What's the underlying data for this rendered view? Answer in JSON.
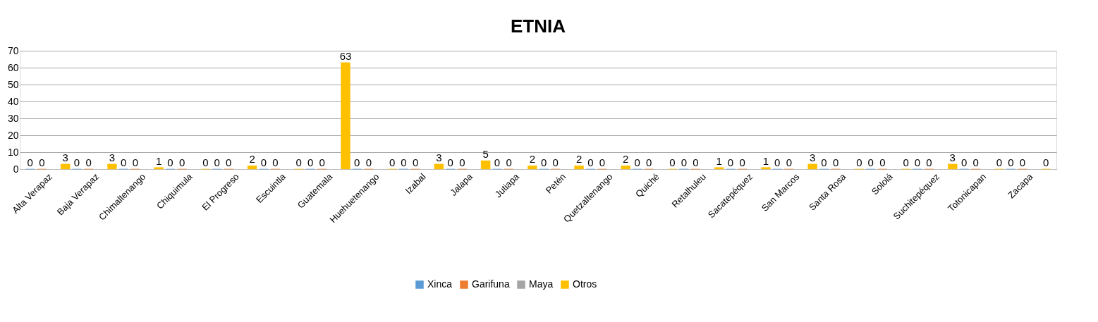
{
  "chart_data": {
    "type": "bar",
    "title": "ETNIA",
    "categories": [
      "Alta Verapaz",
      "Baja Verapaz",
      "Chimaltenango",
      "Chiquimula",
      "El Progreso",
      "Escuintla",
      "Guatemala",
      "Huehuetenango",
      "Izabal",
      "Jalapa",
      "Jutiapa",
      "Petén",
      "Quetzaltenango",
      "Quiché",
      "Retalhuleu",
      "Sacatepéquez",
      "San Marcos",
      "Santa Rosa",
      "Sololá",
      "Suchitepéquez",
      "Totonicapan",
      "Zacapa"
    ],
    "series": [
      {
        "name": "Xinca",
        "color": "#5b9bd5",
        "values": [
          0,
          0,
          0,
          0,
          0,
          0,
          0,
          0,
          0,
          0,
          0,
          0,
          0,
          0,
          0,
          0,
          0,
          0,
          0,
          0,
          0,
          0
        ]
      },
      {
        "name": "Garifuna",
        "color": "#ed7d31",
        "values": [
          0,
          0,
          0,
          0,
          0,
          0,
          0,
          0,
          0,
          0,
          0,
          0,
          0,
          0,
          0,
          0,
          0,
          0,
          0,
          0,
          0,
          0
        ]
      },
      {
        "name": "Maya",
        "color": "#a5a5a5",
        "values": [
          null,
          null,
          null,
          null,
          null,
          null,
          null,
          null,
          null,
          null,
          null,
          null,
          null,
          null,
          null,
          null,
          null,
          null,
          null,
          null,
          null,
          null
        ]
      },
      {
        "name": "Otros",
        "color": "#ffc000",
        "values": [
          3,
          3,
          1,
          0,
          2,
          0,
          63,
          0,
          3,
          5,
          2,
          2,
          2,
          0,
          1,
          1,
          3,
          0,
          0,
          3,
          0,
          0
        ]
      }
    ],
    "ylim": [
      0,
      70
    ],
    "yticks": [
      0,
      10,
      20,
      30,
      40,
      50,
      60,
      70
    ],
    "grid": "y",
    "legend": "bottom",
    "data_labels": true
  }
}
